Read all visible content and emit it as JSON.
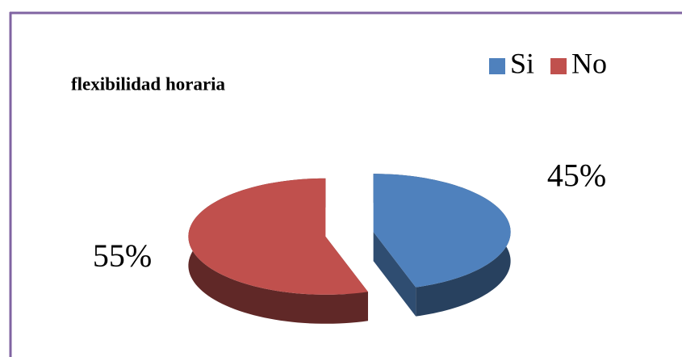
{
  "chart_data": {
    "type": "pie",
    "title": "flexibilidad horaria",
    "categories": [
      "Si",
      "No"
    ],
    "values": [
      45,
      55
    ],
    "value_labels": [
      "45%",
      "55%"
    ],
    "colors": [
      "#4f81bd",
      "#c0504d"
    ],
    "legend": "top-right"
  }
}
